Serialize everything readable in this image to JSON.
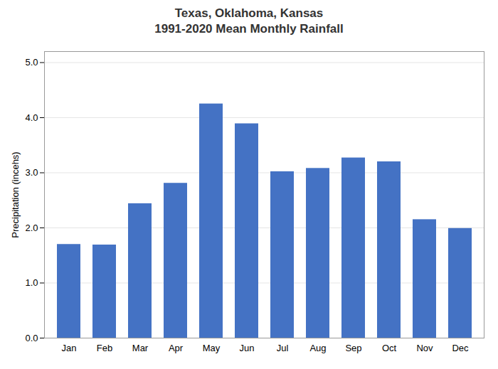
{
  "chart_data": {
    "type": "bar",
    "title": "Texas, Oklahoma, Kansas\n1991-2020 Mean Monthly Rainfall",
    "categories": [
      "Jan",
      "Feb",
      "Mar",
      "Apr",
      "May",
      "Jun",
      "Jul",
      "Aug",
      "Sep",
      "Oct",
      "Nov",
      "Dec"
    ],
    "values": [
      1.7,
      1.69,
      2.44,
      2.81,
      4.25,
      3.89,
      3.02,
      3.08,
      3.27,
      3.2,
      2.15,
      1.99
    ],
    "color": "#4472c4",
    "ylabel": "Precipitation (incehs)",
    "ylim": [
      0,
      5.2
    ],
    "yticks": [
      0,
      1,
      2,
      3,
      4,
      5
    ],
    "grid": true
  }
}
